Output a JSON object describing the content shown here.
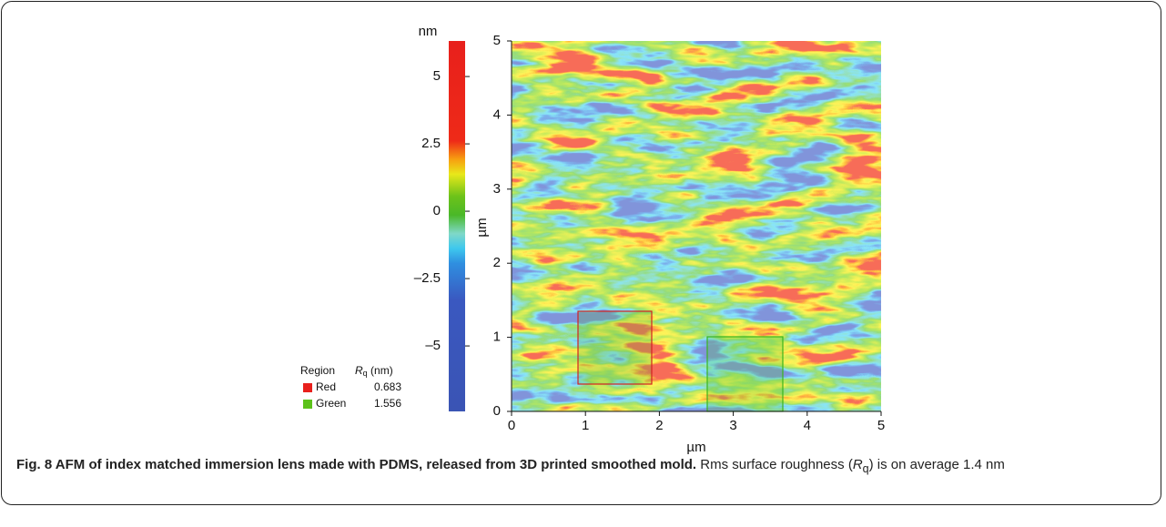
{
  "chart_data": {
    "type": "heatmap",
    "xlabel": "µm",
    "ylabel": "µm",
    "xlim": [
      0,
      5
    ],
    "ylim": [
      0,
      5
    ],
    "xticks": [
      0,
      1,
      2,
      3,
      4,
      5
    ],
    "yticks": [
      0,
      1,
      2,
      3,
      4,
      5
    ],
    "colorbar": {
      "label": "nm",
      "lim": [
        -7.43,
        6.32
      ],
      "ticks": [
        5,
        2.5,
        0,
        {
          "value": -2.5,
          "label": "–2.5"
        },
        {
          "value": -5,
          "label": "–5"
        }
      ]
    },
    "legend": {
      "header": [
        "Region",
        "R",
        "q",
        " (nm)"
      ],
      "rows": [
        {
          "name": "Red",
          "color": "#e8201c",
          "value": "0.683"
        },
        {
          "name": "Green",
          "color": "#5cc21a",
          "value": "1.556"
        }
      ]
    }
  },
  "caption": {
    "bold": "Fig. 8 AFM of index matched immersion lens made with PDMS, released from 3D printed smoothed mold.",
    "text": [
      " Rms surface roughness (",
      "R",
      "q",
      ") is on average 1.4 nm"
    ]
  }
}
